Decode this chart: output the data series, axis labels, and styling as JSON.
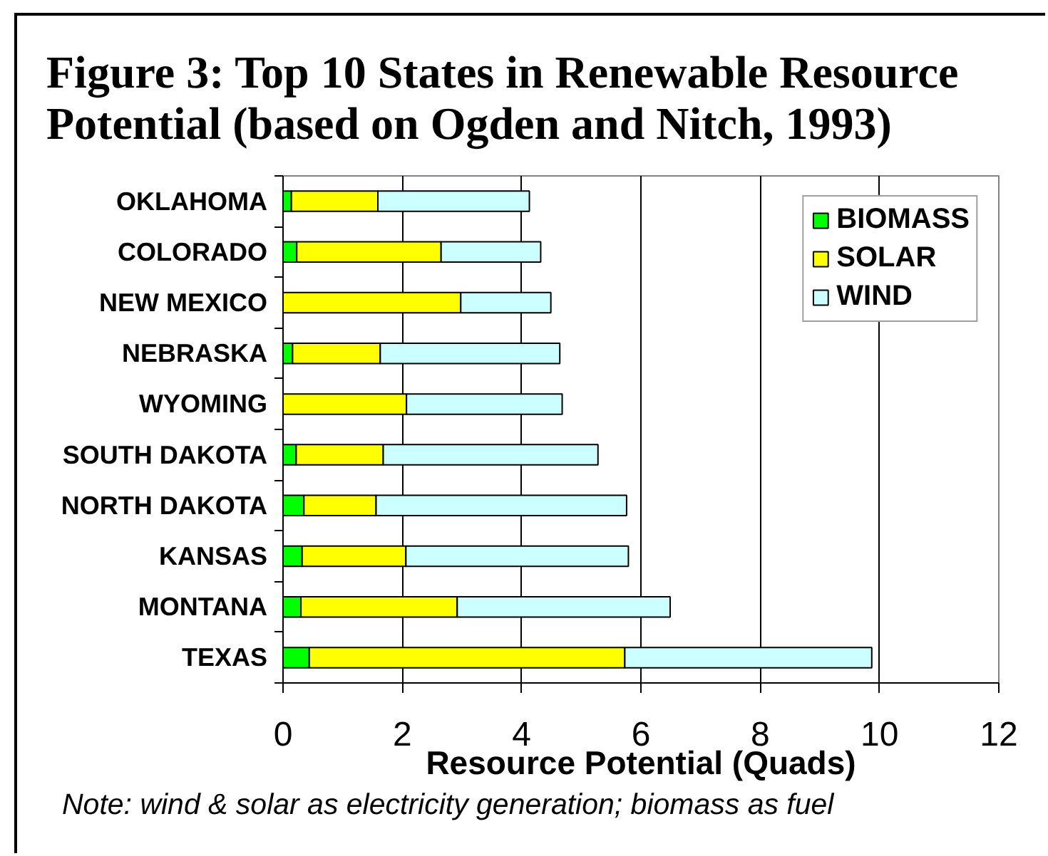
{
  "chart_data": {
    "type": "bar",
    "orientation": "horizontal",
    "stacked": true,
    "title": "Figure 3: Top 10 States in Renewable Resource Potential (based on Ogden and Nitch, 1993)",
    "xlabel": "Resource Potential (Quads)",
    "annotations": [
      "Note: wind & solar as electricity generation; biomass as fuel"
    ],
    "categories": [
      "OKLAHOMA",
      "COLORADO",
      "NEW MEXICO",
      "NEBRASKA",
      "WYOMING",
      "SOUTH DAKOTA",
      "NORTH DAKOTA",
      "KANSAS",
      "MONTANA",
      "TEXAS"
    ],
    "series": [
      {
        "name": "BIOMASS",
        "color": "#00ff00",
        "values": [
          0.14,
          0.23,
          0,
          0.16,
          0,
          0.22,
          0.35,
          0.32,
          0.3,
          0.44
        ]
      },
      {
        "name": "SOLAR",
        "color": "#ffff00",
        "values": [
          1.45,
          2.42,
          2.98,
          1.47,
          2.07,
          1.46,
          1.21,
          1.74,
          2.62,
          5.29
        ]
      },
      {
        "name": "WIND",
        "color": "#ccffff",
        "values": [
          2.54,
          1.67,
          1.51,
          3.01,
          2.61,
          3.6,
          4.2,
          3.73,
          3.57,
          4.14
        ]
      }
    ],
    "xlim": [
      0,
      12
    ],
    "xticks": [
      0,
      2,
      4,
      6,
      8,
      10,
      12
    ],
    "grid": "x",
    "legend": "top right"
  }
}
